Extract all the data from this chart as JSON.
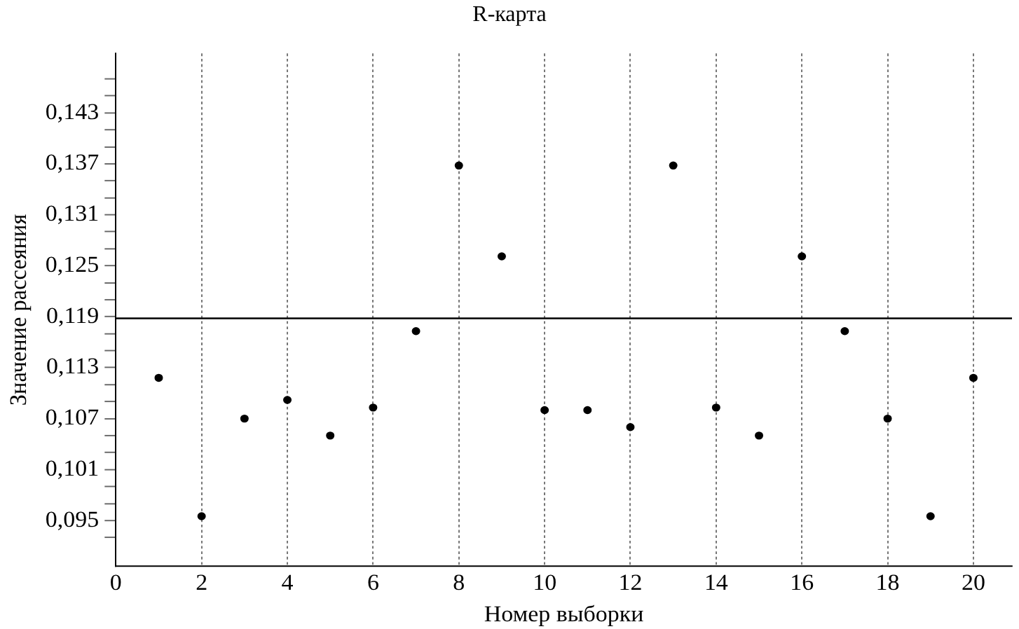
{
  "chart_data": {
    "type": "scatter",
    "title": "R-карта",
    "xlabel": "Номер выборки",
    "ylabel": "Значение рассеяния",
    "x": [
      1,
      2,
      3,
      4,
      5,
      6,
      7,
      8,
      9,
      10,
      11,
      12,
      13,
      14,
      15,
      16,
      17,
      18,
      19,
      20
    ],
    "series": [
      {
        "color": "#000000",
        "values": [
          0.1118,
          0.0955,
          0.107,
          0.1092,
          0.105,
          0.1083,
          0.1173,
          0.1368,
          0.1261,
          0.108,
          0.108,
          0.106,
          0.1368,
          0.1083,
          0.105,
          0.1261,
          0.1173,
          0.107,
          0.0955,
          0.1118
        ]
      }
    ],
    "xlim": [
      0,
      20.9
    ],
    "xticks": [
      0,
      2,
      4,
      6,
      8,
      10,
      12,
      14,
      16,
      18,
      20
    ],
    "ylim": [
      0.0896,
      0.15
    ],
    "yticks": [
      {
        "value": 0.093,
        "label": null
      },
      {
        "value": 0.095,
        "label": "0,095"
      },
      {
        "value": 0.097,
        "label": null
      },
      {
        "value": 0.099,
        "label": null
      },
      {
        "value": 0.101,
        "label": "0,101"
      },
      {
        "value": 0.103,
        "label": null
      },
      {
        "value": 0.105,
        "label": null
      },
      {
        "value": 0.107,
        "label": "0,107"
      },
      {
        "value": 0.109,
        "label": null
      },
      {
        "value": 0.111,
        "label": null
      },
      {
        "value": 0.113,
        "label": "0,113"
      },
      {
        "value": 0.115,
        "label": null
      },
      {
        "value": 0.117,
        "label": null
      },
      {
        "value": 0.119,
        "label": "0,119"
      },
      {
        "value": 0.121,
        "label": null
      },
      {
        "value": 0.123,
        "label": null
      },
      {
        "value": 0.125,
        "label": "0,125"
      },
      {
        "value": 0.127,
        "label": null
      },
      {
        "value": 0.129,
        "label": null
      },
      {
        "value": 0.131,
        "label": "0,131"
      },
      {
        "value": 0.133,
        "label": null
      },
      {
        "value": 0.135,
        "label": null
      },
      {
        "value": 0.137,
        "label": "0,137"
      },
      {
        "value": 0.139,
        "label": null
      },
      {
        "value": 0.141,
        "label": null
      },
      {
        "value": 0.143,
        "label": "0,143"
      },
      {
        "value": 0.145,
        "label": null
      },
      {
        "value": 0.147,
        "label": null
      }
    ],
    "ref_lines": [
      {
        "axis": "y",
        "value": 0.1188,
        "color": "#000000",
        "line_style": "solid"
      }
    ],
    "grid": "x",
    "marker": "circle",
    "legend": false
  }
}
